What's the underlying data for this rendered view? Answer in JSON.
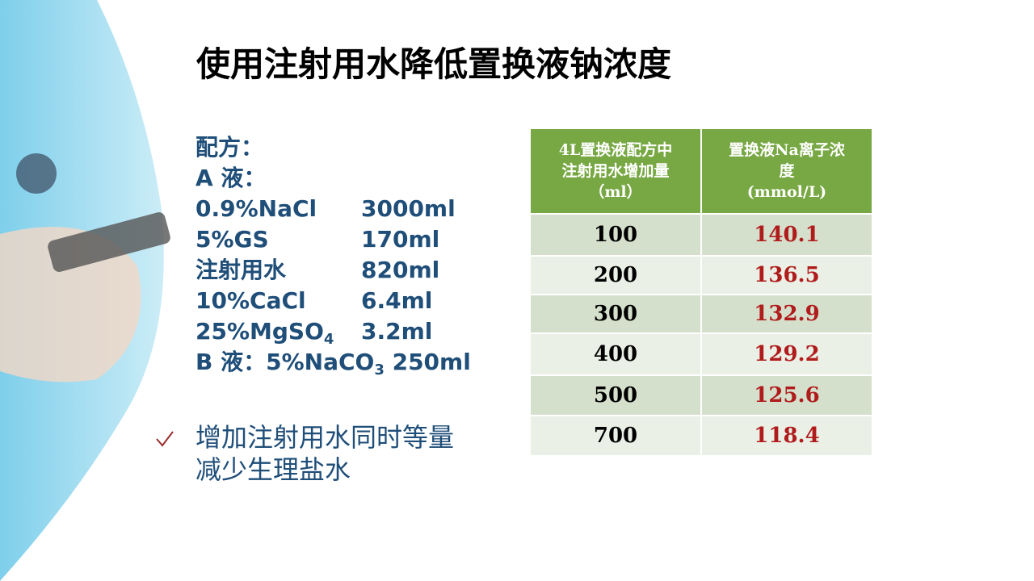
{
  "title": "使用注射用水降低置换液钠浓度",
  "recipe": {
    "heading": "配方：",
    "part_a": "A 液：",
    "items": [
      {
        "name": "0.9%NaCl",
        "amount": "3000ml"
      },
      {
        "name": "5%GS",
        "amount": "170ml"
      },
      {
        "name": "注射用水",
        "amount": "820ml"
      },
      {
        "name": "10%CaCl",
        "amount": "6.4ml"
      },
      {
        "name": "25%MgSO",
        "sub": "4",
        "amount": "3.2ml"
      }
    ],
    "part_b": {
      "label": "B 液：",
      "name": "5%NaCO",
      "sub": "3",
      "amount": "250ml"
    }
  },
  "bullet": [
    "增加注射用水同时等量",
    "减少生理盐水"
  ],
  "table": {
    "header": [
      [
        "4L置换液配方中",
        "注射用水增加量",
        "（ml）"
      ],
      [
        "置换液Na离子浓",
        "度",
        "(mmol/L)"
      ]
    ],
    "rows": [
      [
        100,
        140.1
      ],
      [
        200,
        136.5
      ],
      [
        300,
        132.9
      ],
      [
        400,
        129.2
      ],
      [
        500,
        125.6
      ],
      [
        700,
        118.4
      ]
    ]
  }
}
